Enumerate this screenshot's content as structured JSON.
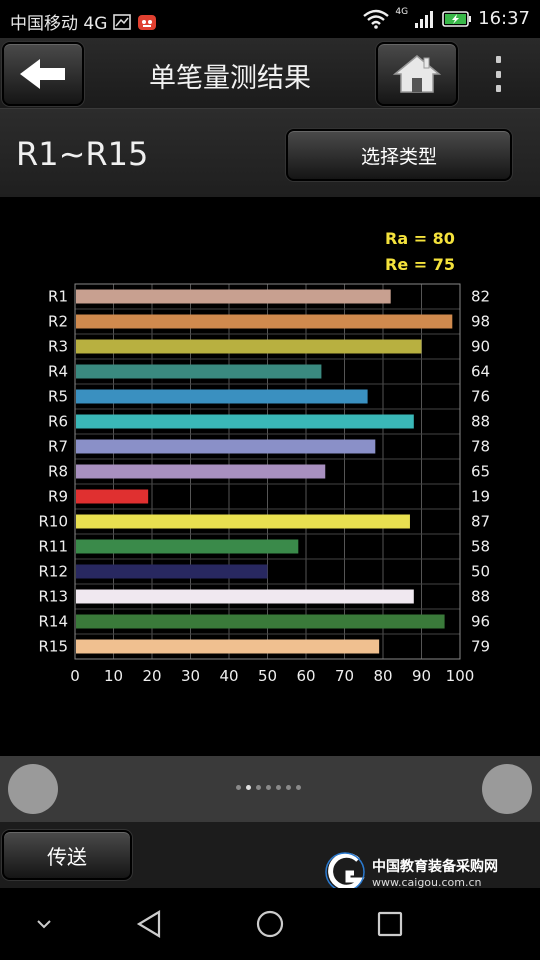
{
  "status_bar": {
    "carrier": "中国移动 4G",
    "network": "4G",
    "time": "16:37"
  },
  "app_bar": {
    "title": "单笔量测结果"
  },
  "range": {
    "label": "R1~R15",
    "type_button": "选择类型"
  },
  "summary": {
    "ra": "Ra = 80",
    "re": "Re = 75"
  },
  "chart_data": {
    "type": "bar",
    "orientation": "horizontal",
    "categories": [
      "R1",
      "R2",
      "R3",
      "R4",
      "R5",
      "R6",
      "R7",
      "R8",
      "R9",
      "R10",
      "R11",
      "R12",
      "R13",
      "R14",
      "R15"
    ],
    "values": [
      82,
      98,
      90,
      64,
      76,
      88,
      78,
      65,
      19,
      87,
      58,
      50,
      88,
      96,
      79
    ],
    "value_labels": [
      "82",
      "98",
      "90",
      "64",
      "76",
      "88",
      "78",
      "65",
      "19",
      "87",
      "58",
      "50",
      "88",
      "96",
      "79"
    ],
    "colors": [
      "#c8a090",
      "#d08a4e",
      "#b8b040",
      "#3a8a80",
      "#3a90c0",
      "#3ab8b8",
      "#8a90c8",
      "#a890c0",
      "#e03030",
      "#e8e050",
      "#3a8a4a",
      "#282860",
      "#f0e8f0",
      "#3a7a3a",
      "#f0c090"
    ],
    "xlim": [
      0,
      100
    ],
    "xticks": [
      "0",
      "10",
      "20",
      "30",
      "40",
      "50",
      "60",
      "70",
      "80",
      "90",
      "100"
    ],
    "grid": true
  },
  "pager": {
    "page_count": 7,
    "active_index": 1
  },
  "bottom": {
    "send_label": "传送",
    "watermark_cn": "中国教育装备采购网",
    "watermark_url": "www.caigou.com.cn"
  },
  "icons": {
    "back": "arrow-left-icon",
    "home": "home-icon",
    "menu": "more-vertical-icon"
  }
}
